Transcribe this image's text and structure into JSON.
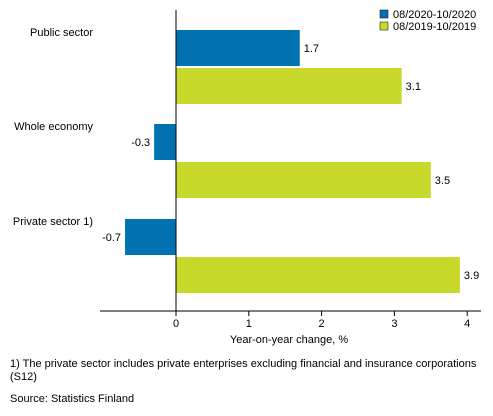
{
  "chart_data": {
    "type": "bar",
    "orientation": "horizontal",
    "categories": [
      "Public sector",
      "Whole economy",
      "Private sector 1)"
    ],
    "series": [
      {
        "name": "08/2020-10/2020",
        "color": "#0072b2",
        "values": [
          1.7,
          -0.3,
          -0.7
        ]
      },
      {
        "name": "08/2019-10/2019",
        "color": "#c8d92b",
        "values": [
          3.1,
          3.5,
          3.9
        ]
      }
    ],
    "data_labels": [
      [
        "1.7",
        "-0.3",
        "-0.7"
      ],
      [
        "3.1",
        "3.5",
        "3.9"
      ]
    ],
    "xticks": [
      0,
      1,
      2,
      3,
      4
    ],
    "xlim": [
      -1.05,
      4.1
    ],
    "xlabel": "Year-on-year change, %",
    "ylabel": "",
    "title": "",
    "legend_position": "top-right",
    "grid": false
  },
  "footnote": "1) The private sector includes private enterprises excluding financial and insurance corporations (S12)",
  "source": "Source: Statistics Finland"
}
